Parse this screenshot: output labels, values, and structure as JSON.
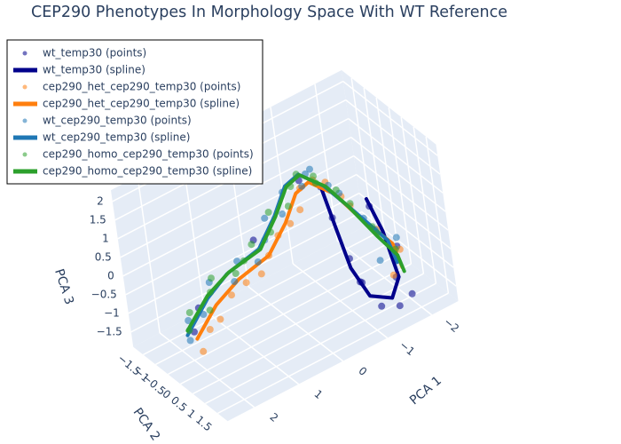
{
  "chart_data": {
    "type": "scatter3d",
    "title": "CEP290 Phenotypes In Morphology Space With WT Reference",
    "xlabel": "PCA 1",
    "ylabel": "PCA 2",
    "zlabel": "PCA 3",
    "xlim": [
      -2.6,
      2.6
    ],
    "ylim": [
      -1.9,
      1.9
    ],
    "zlim": [
      -1.9,
      2.3
    ],
    "xticks": [
      {
        "value": -2,
        "label": "−2"
      },
      {
        "value": -1,
        "label": "−1"
      },
      0,
      1,
      2
    ],
    "yticks": [
      {
        "value": -1.5,
        "label": "−1.5"
      },
      {
        "value": -1,
        "label": "−1"
      },
      {
        "value": -0.5,
        "label": "−0.5"
      },
      0,
      0.5,
      1,
      1.5
    ],
    "zticks": [
      {
        "value": -1.5,
        "label": "−1.5"
      },
      {
        "value": -1,
        "label": "−1"
      },
      {
        "value": -0.5,
        "label": "−0.5"
      },
      0,
      0.5,
      1,
      1.5,
      2
    ],
    "grid": true,
    "legend": "top-left",
    "series": [
      {
        "name": "wt_temp30 (points)",
        "mode": "markers",
        "color": "#00008b",
        "opacity": 0.55,
        "x": [
          -0.7,
          -0.9,
          -1.0,
          -1.2,
          -1.3,
          -1.5,
          -1.6,
          -1.7,
          -1.4,
          -1.2,
          -1.8,
          -1.1,
          -0.4,
          0.5,
          2.2,
          1.9
        ],
        "y": [
          0.5,
          0.4,
          0.7,
          0.6,
          1.2,
          1.6,
          1.4,
          1.8,
          1.7,
          1.5,
          1.2,
          0.9,
          0.2,
          -0.3,
          0.1,
          -0.2
        ],
        "z": [
          1.6,
          0.6,
          -0.4,
          -1.2,
          -1.6,
          -1.5,
          -0.9,
          -1.2,
          0.3,
          1.3,
          -0.3,
          -1.0,
          1.8,
          0.5,
          -0.7,
          -0.4
        ]
      },
      {
        "name": "wt_temp30 (spline)",
        "mode": "lines",
        "color": "#00008b",
        "x": [
          -0.72,
          -0.89,
          -1.09,
          -1.41,
          -1.41,
          -1.61,
          -1.41,
          -1.16
        ],
        "y": [
          0.5,
          0.5,
          0.5,
          0.5,
          1.5,
          1.5,
          1.5,
          1.5
        ],
        "z": [
          1.5,
          0.42,
          -0.81,
          -1.76,
          -1.29,
          -0.85,
          0.5,
          1.52
        ]
      },
      {
        "name": "cep290_het_cep290_temp30 (points)",
        "mode": "markers",
        "color": "#ff7f0e",
        "opacity": 0.55,
        "x": [
          2.3,
          2.0,
          1.8,
          1.4,
          1.1,
          0.8,
          0.5,
          0.2,
          0,
          -0.2,
          -0.4,
          -0.6,
          -0.9,
          -1.1,
          -1.4,
          -1.7,
          -1.9,
          -1.6
        ],
        "y": [
          0.6,
          0.4,
          0.5,
          0.3,
          0.4,
          0.5,
          0.3,
          0.2,
          0.4,
          0.5,
          0.2,
          0.4,
          0.3,
          0.5,
          0.2,
          0.6,
          1.1,
          1.3
        ],
        "z": [
          -0.9,
          -0.6,
          -0.4,
          -0.1,
          0.1,
          0.2,
          0.4,
          0.7,
          1.0,
          1.3,
          1.6,
          1.8,
          1.5,
          1.1,
          0.5,
          -0.1,
          -0.5,
          -0.9
        ]
      },
      {
        "name": "cep290_het_cep290_temp30 (spline)",
        "mode": "lines",
        "color": "#ff7f0e",
        "x": [
          2.25,
          1.75,
          1.2,
          0.5,
          0.05,
          -0.25,
          -0.55,
          -1.05,
          -1.45,
          -1.9,
          -1.85
        ],
        "y": [
          0.3,
          0.3,
          0.3,
          0.3,
          0.3,
          0.3,
          0.3,
          0.3,
          0.4,
          0.8,
          1.2
        ],
        "z": [
          -0.75,
          -0.15,
          0.2,
          0.4,
          1.0,
          1.6,
          1.72,
          1.1,
          0.3,
          -0.5,
          -0.9
        ]
      },
      {
        "name": "wt_cep290_temp30 (points)",
        "mode": "markers",
        "color": "#1f77b4",
        "opacity": 0.55,
        "x": [
          2.4,
          2.2,
          2.0,
          1.6,
          1.3,
          1.0,
          0.7,
          0.4,
          0.2,
          0,
          -0.2,
          -0.4,
          -0.6,
          -0.8,
          -1.0,
          -1.3,
          -1.6,
          -1.9,
          -2.0,
          -1.5
        ],
        "y": [
          0.3,
          -0.1,
          0.2,
          -0.2,
          0.3,
          -0.1,
          0.2,
          0,
          -0.3,
          0.1,
          -0.2,
          0.3,
          0.1,
          -0.1,
          0.2,
          0,
          0.3,
          0.1,
          0.8,
          1.0
        ],
        "z": [
          -0.7,
          -0.5,
          -0.3,
          0.1,
          0.2,
          0.35,
          0.3,
          0.6,
          0.9,
          1.1,
          1.4,
          1.7,
          1.8,
          1.7,
          1.3,
          0.8,
          0.1,
          -0.5,
          -0.4,
          -0.6
        ]
      },
      {
        "name": "wt_cep290_temp30 (spline)",
        "mode": "lines",
        "color": "#1f77b4",
        "x": [
          2.35,
          1.8,
          1.3,
          0.55,
          0.12,
          -0.18,
          -0.5,
          -1.0,
          -1.45,
          -1.95,
          -1.9
        ],
        "y": [
          0.1,
          0.05,
          0,
          0,
          0,
          0,
          0,
          0,
          0.1,
          0.5,
          0.9
        ],
        "z": [
          -0.7,
          -0.08,
          0.24,
          0.45,
          1.08,
          1.68,
          1.8,
          1.18,
          0.36,
          -0.6,
          -0.95
        ]
      },
      {
        "name": "cep290_homo_cep290_temp30 (points)",
        "mode": "markers",
        "color": "#2ca02c",
        "opacity": 0.55,
        "x": [
          2.3,
          2.1,
          1.9,
          1.7,
          1.5,
          1.2,
          0.9,
          0.6,
          0.3,
          0.1,
          -0.1,
          -0.3,
          -0.5,
          -0.7,
          -0.9,
          -1.2,
          -1.5,
          -1.8,
          -1.9,
          -1.7
        ],
        "y": [
          0.1,
          -0.2,
          0.3,
          0,
          -0.3,
          0.2,
          0,
          -0.2,
          0.1,
          -0.3,
          0.2,
          0,
          -0.1,
          0.3,
          -0.2,
          0.1,
          0,
          0.2,
          0.9,
          0.6
        ],
        "z": [
          -0.6,
          -0.4,
          -0.2,
          0,
          0.1,
          0.3,
          0.35,
          0.5,
          0.8,
          1.0,
          1.3,
          1.6,
          1.75,
          1.6,
          1.4,
          1.0,
          0.4,
          -0.3,
          -0.6,
          -0.2
        ]
      },
      {
        "name": "cep290_homo_cep290_temp30 (spline)",
        "mode": "lines",
        "color": "#2ca02c",
        "x": [
          2.29,
          1.77,
          1.25,
          0.52,
          0.1,
          -0.21,
          -0.52,
          -1.04,
          -1.46,
          -1.98,
          -1.88,
          -1.88
        ],
        "y": [
          0,
          0,
          0,
          0,
          0,
          0,
          0,
          0,
          0,
          0,
          1,
          1.2
        ],
        "z": [
          -0.66,
          -0.05,
          0.26,
          0.42,
          1.05,
          1.65,
          1.77,
          1.14,
          0.34,
          -0.78,
          -0.69,
          -1.02
        ]
      }
    ]
  }
}
